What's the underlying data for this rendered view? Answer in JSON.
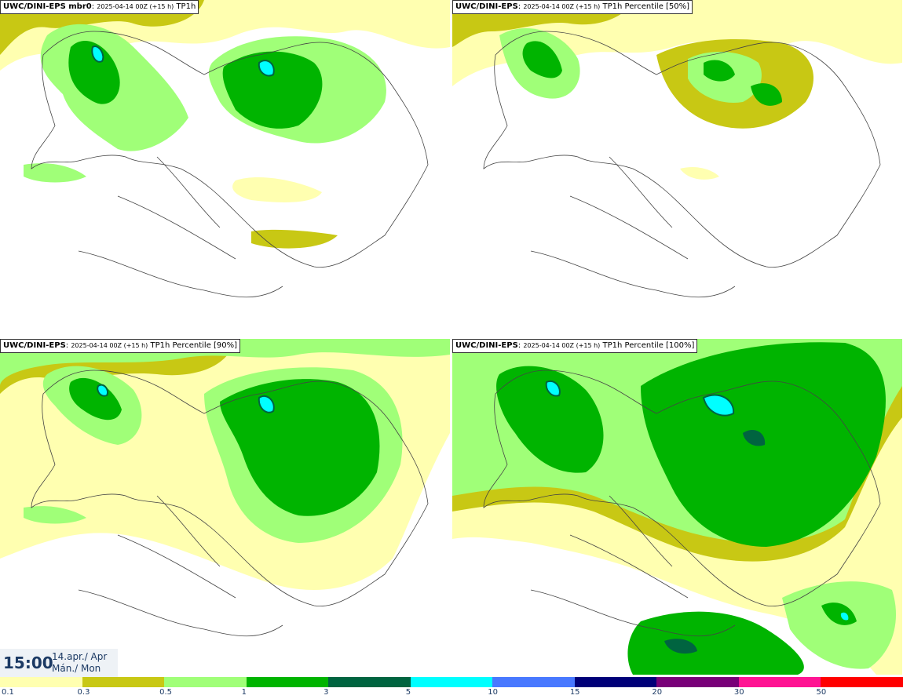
{
  "panels": [
    {
      "model": "UWC/DINI-EPS mbr0",
      "run": "2025-04-14 00Z (+15 h)",
      "field": "TP1h"
    },
    {
      "model": "UWC/DINI-EPS",
      "run": "2025-04-14 00Z (+15 h)",
      "field": "TP1h Percentile [50%]"
    },
    {
      "model": "UWC/DINI-EPS",
      "run": "2025-04-14 00Z (+15 h)",
      "field": "TP1h Percentile [90%]"
    },
    {
      "model": "UWC/DINI-EPS",
      "run": "2025-04-14 00Z (+15 h)",
      "field": "TP1h Percentile [100%]"
    }
  ],
  "valid_time": {
    "time": "15:00",
    "date_line1": "14.apr./ Apr",
    "date_line2": "Mán./ Mon"
  },
  "legend": {
    "colors": [
      "#ffffb0",
      "#c8c814",
      "#a0ff78",
      "#00b400",
      "#006440",
      "#00ffff",
      "#4878ff",
      "#000078",
      "#780078",
      "#ff1493",
      "#ff0000"
    ],
    "ticks": [
      "0.1",
      "0.3",
      "0.5",
      "1",
      "3",
      "5",
      "10",
      "15",
      "20",
      "30",
      "50"
    ]
  }
}
